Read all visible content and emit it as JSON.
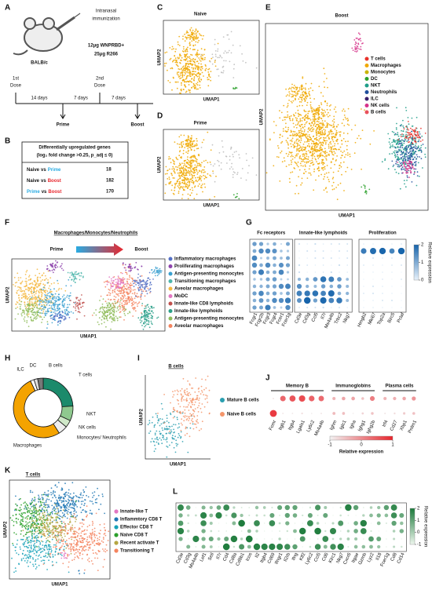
{
  "panel_labels": [
    "A",
    "B",
    "C",
    "D",
    "E",
    "F",
    "G",
    "H",
    "I",
    "J",
    "K",
    "L"
  ],
  "umap_x": "UMAP1",
  "umap_y": "UMAP2",
  "panel_a": {
    "route": [
      "Intranasal",
      "immunization"
    ],
    "dose_1": "12μg WNPRBD+",
    "dose_2": "25μg R266",
    "dose_2_color": "#e8262d",
    "strain": "BALB/c",
    "first_dose": [
      "1st",
      "Dose"
    ],
    "second_dose": [
      "2nd",
      "Dose"
    ],
    "intervals": [
      "14 days",
      "7 days",
      "7 days"
    ],
    "prime": "Prime",
    "prime_color": "#29abe2",
    "boost": "Boost",
    "boost_color": "#e8262d"
  },
  "panel_b": {
    "header": [
      "Differentially upregulated genes",
      "(log₂ fold change >0.25, p_adj ≤ 0)"
    ],
    "vs": "vs",
    "rows": [
      {
        "a": "Naive",
        "a_color": "#111",
        "b": "Prime",
        "b_color": "#29abe2",
        "n": 18
      },
      {
        "a": "Naive",
        "a_color": "#111",
        "b": "Boost",
        "b_color": "#e8262d",
        "n": 182
      },
      {
        "a": "Prime",
        "a_color": "#29abe2",
        "b": "Boost",
        "b_color": "#e8262d",
        "n": 170
      }
    ]
  },
  "panel_c": {
    "title": "Naive",
    "color": "#111"
  },
  "panel_d": {
    "title": "Prime",
    "color": "#29abe2"
  },
  "panel_e": {
    "title": "Boost",
    "color": "#e8262d",
    "legend": [
      {
        "label": "T cells",
        "color": "#e8322b"
      },
      {
        "label": "Macrophages",
        "color": "#f0a800"
      },
      {
        "label": "Monocytes",
        "color": "#c8b400"
      },
      {
        "label": "DC",
        "color": "#2ca02c"
      },
      {
        "label": "NKT",
        "color": "#1f9e89"
      },
      {
        "label": "Neutrophils",
        "color": "#1f4e9c"
      },
      {
        "label": "ILC",
        "color": "#3a1f6b"
      },
      {
        "label": "NK cells",
        "color": "#d6338a"
      },
      {
        "label": "B cells",
        "color": "#e8505b"
      }
    ]
  },
  "panel_f": {
    "title": "Macrophages/Monocytes/Neutrophils",
    "prime": "Prime",
    "prime_color": "#29abe2",
    "boost": "Boost",
    "boost_color": "#e8262d",
    "legend": [
      {
        "label": "Inflammatory macrophages",
        "color": "#5470c6",
        "text_color": "#111"
      },
      {
        "label": "Proliferating macrophages",
        "color": "#8e44ad",
        "text_color": "#111"
      },
      {
        "label": "Antigen-presenting monocytes",
        "color": "#3ba0d0",
        "text_color": "#29abe2"
      },
      {
        "label": "Transitioning macrophages",
        "color": "#4db6ac",
        "text_color": "#29abe2"
      },
      {
        "label": "Aveolar macrophages",
        "color": "#f4b942",
        "text_color": "#111"
      },
      {
        "label": "MoDC",
        "color": "#e377c2",
        "text_color": "#e8262d"
      },
      {
        "label": "Innate-like CD8 lymphoids",
        "color": "#c0504d",
        "text_color": "#e8262d"
      },
      {
        "label": "Innate-like lymphoids",
        "color": "#2ca089",
        "text_color": "#e8262d"
      },
      {
        "label": "Antigen-presenting monocytes",
        "color": "#8fbc5a",
        "text_color": "#e8262d"
      },
      {
        "label": "Aveolar macrophages",
        "color": "#f4845f",
        "text_color": "#e8262d"
      }
    ]
  },
  "panel_g": {
    "groups": [
      {
        "title": "Fc receptors",
        "genes": [
          "Fcgr1",
          "Fcgr2b",
          "Fcgr3",
          "Fcgr4",
          "Fcer1",
          "Fcer1g"
        ]
      },
      {
        "title": "Innate-like lymphoids",
        "genes": [
          "Cd3e",
          "Cd3g",
          "Ccl5",
          "Il7r",
          "Ms4a4b",
          "Trbc2",
          "Nkg7"
        ]
      },
      {
        "title": "Proliferation",
        "genes": [
          "Hmgb2",
          "Mki67",
          "Top2a",
          "Birc5",
          "Pclaf"
        ]
      }
    ],
    "colorbar": {
      "label": "Relative expression",
      "colors": [
        "#e8f2fb",
        "#1764ab"
      ],
      "ticks": [
        0,
        1,
        2
      ]
    }
  },
  "panel_h": {
    "labels": [
      "T cells",
      "NKT",
      "NK cells",
      "Monocytes/ Neutrophils",
      "Macrophages",
      "ILC",
      "DC",
      "B cells"
    ],
    "shares": [
      24,
      8,
      4,
      5,
      52,
      2,
      2,
      3
    ],
    "colors": [
      "#1b8a6b",
      "#8fc98f",
      "#cfe8c8",
      "#eeeeee",
      "#f4a300",
      "#ffffff",
      "#dddddd",
      "#777777"
    ]
  },
  "panel_i": {
    "title": "B cells",
    "legend": [
      {
        "label": "Mature B cells",
        "color": "#2a9fb0"
      },
      {
        "label": "Naive B cells",
        "color": "#f4956a"
      }
    ]
  },
  "panel_j": {
    "groups": [
      {
        "title": "Memory B",
        "genes": [
          "Fcmr",
          "Itgb1",
          "Itgb4",
          "Lgals1",
          "Ly6c2",
          "Ms4a4b"
        ]
      },
      {
        "title": "Immunoglobins",
        "genes": [
          "Ighm",
          "Iglc1",
          "Igha",
          "Ighg1",
          "Ighg2b"
        ]
      },
      {
        "title": "Plasma cells",
        "genes": [
          "Irf4",
          "Cd27",
          "Xbp1",
          "Prdm1"
        ]
      }
    ],
    "colorbar": {
      "label": "Relative expression",
      "colors": [
        "#f2f2f2",
        "#e8262d"
      ],
      "ticks": [
        -1,
        0,
        1
      ]
    }
  },
  "panel_k": {
    "title": "T cells",
    "legend": [
      {
        "label": "Innate-like T",
        "color": "#e377c2"
      },
      {
        "label": "Inflammtory CD8 T",
        "color": "#1f77b4"
      },
      {
        "label": "Effector CD8 T",
        "color": "#17a2b8"
      },
      {
        "label": "Naive CD8 T",
        "color": "#2ca02c"
      },
      {
        "label": "Recent activate T",
        "color": "#b5a642"
      },
      {
        "label": "Transitioning T",
        "color": "#f4845f"
      }
    ]
  },
  "panel_l": {
    "genes": [
      "Cd3e",
      "Cd3g",
      "Ms4a4b",
      "Lef1",
      "Sell",
      "Il7r",
      "Cd4",
      "Cd8a",
      "Cd8b1",
      "Icos",
      "Il2",
      "Itgb4",
      "Cd69",
      "Ifngr1",
      "Il2rb",
      "Ifng",
      "Klf2",
      "Ly6c2",
      "Ccl5",
      "Cd6",
      "Klrc1",
      "Nkg7",
      "Cxcr6",
      "Itgae",
      "Gzmb",
      "Lyz2",
      "Il18",
      "Fcer1g",
      "Cd8",
      "Cd14"
    ],
    "colorbar": {
      "label": "Relative expression",
      "colors": [
        "#eef7ee",
        "#1b7a3a"
      ],
      "ticks": [
        2,
        1,
        0,
        -1
      ]
    }
  }
}
